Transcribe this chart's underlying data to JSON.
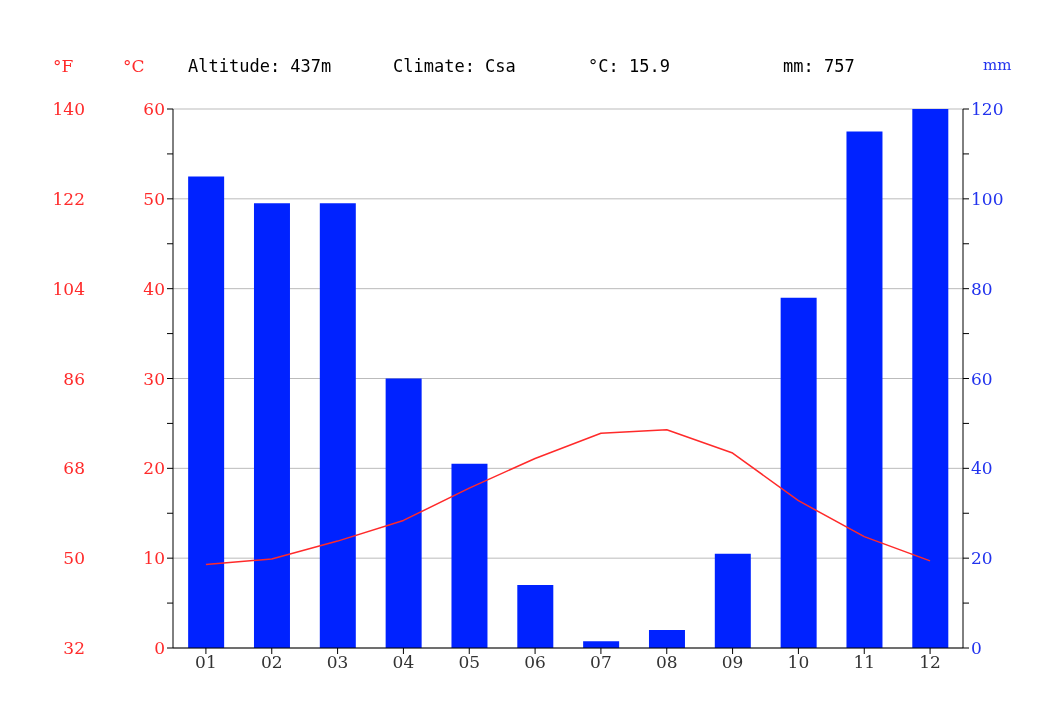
{
  "chart_data": {
    "type": "bar",
    "categories": [
      "01",
      "02",
      "03",
      "04",
      "05",
      "06",
      "07",
      "08",
      "09",
      "10",
      "11",
      "12"
    ],
    "series": [
      {
        "axis": "y2",
        "color": "#0022ff",
        "values": [
          105,
          99,
          99,
          60,
          41,
          14,
          1.5,
          4,
          21,
          78,
          115,
          120
        ]
      },
      {
        "type": "line",
        "axis": "y",
        "color": "#ff2a2a",
        "values": [
          9.3,
          9.9,
          11.9,
          14.2,
          17.8,
          21.1,
          23.9,
          24.3,
          21.7,
          16.4,
          12.4,
          9.7
        ]
      }
    ],
    "ylabel": "°C",
    "y2label": "mm",
    "y3label": "°F",
    "ylim": [
      0,
      60
    ],
    "yticks": [
      0,
      {
        "value": 5,
        "label": null
      },
      10,
      {
        "value": 15,
        "label": null
      },
      20,
      {
        "value": 25,
        "label": null
      },
      30,
      {
        "value": 35,
        "label": null
      },
      40,
      {
        "value": 45,
        "label": null
      },
      50,
      {
        "value": 55,
        "label": null
      },
      60
    ],
    "y2lim": [
      0,
      120
    ],
    "y2ticks": [
      0,
      {
        "value": 10,
        "label": null
      },
      20,
      {
        "value": 30,
        "label": null
      },
      40,
      {
        "value": 50,
        "label": null
      },
      60,
      {
        "value": 70,
        "label": null
      },
      80,
      {
        "value": 90,
        "label": null
      },
      100,
      {
        "value": 110,
        "label": null
      },
      120
    ],
    "y3lim": [
      32,
      140
    ],
    "y3ticks": [
      32,
      50,
      68,
      86,
      104,
      122,
      140
    ],
    "grid": "y",
    "legend": false,
    "marker": "none",
    "line_style": "solid",
    "annotations": [
      "Altitude: 437m",
      "Climate: Csa",
      "°C: 15.9",
      "mm: 757"
    ]
  }
}
